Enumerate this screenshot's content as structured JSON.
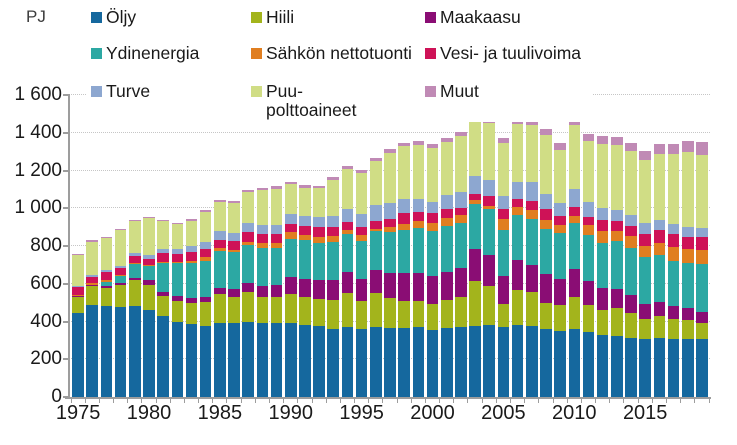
{
  "unit_label": "PJ",
  "legend": {
    "items": [
      {
        "label": "Öljy",
        "color": "#15689e"
      },
      {
        "label": "Hiili",
        "color": "#a3b41c"
      },
      {
        "label": "Maakaasu",
        "color": "#8a0d74"
      },
      {
        "label": "Ydinenergia",
        "color": "#2ca8a3"
      },
      {
        "label": "Sähkön nettotuonti",
        "color": "#e07e20"
      },
      {
        "label": "Vesi- ja tuulivoima",
        "color": "#ce1257"
      },
      {
        "label": "Turve",
        "color": "#8da7d0"
      },
      {
        "label": "Puu-\npolttoaineet",
        "color": "#d0dd85"
      },
      {
        "label": "Muut",
        "color": "#c08ab5"
      }
    ]
  },
  "chart_data": {
    "type": "bar",
    "subtype": "stacked-column",
    "title": "",
    "ylabel": "PJ",
    "xlabel": "",
    "ylim": [
      0,
      1600
    ],
    "y_tick_step": 200,
    "y_tick_labels": [
      "0",
      "200",
      "400",
      "600",
      "800",
      "1 000",
      "1 200",
      "1 400",
      "1 600"
    ],
    "grid": "horizontal-dotted",
    "legend_position": "top",
    "years": [
      1975,
      1976,
      1977,
      1978,
      1979,
      1980,
      1981,
      1982,
      1983,
      1984,
      1985,
      1986,
      1987,
      1988,
      1989,
      1990,
      1991,
      1992,
      1993,
      1994,
      1995,
      1996,
      1997,
      1998,
      1999,
      2000,
      2001,
      2002,
      2003,
      2004,
      2005,
      2006,
      2007,
      2008,
      2009,
      2010,
      2011,
      2012,
      2013,
      2014,
      2015,
      2016,
      2017,
      2018,
      2019
    ],
    "x_tick_labels": [
      {
        "label": "1975",
        "index": 0
      },
      {
        "label": "1980",
        "index": 5
      },
      {
        "label": "1985",
        "index": 10
      },
      {
        "label": "1990",
        "index": 15
      },
      {
        "label": "1995",
        "index": 20
      },
      {
        "label": "2000",
        "index": 25
      },
      {
        "label": "2005",
        "index": 30
      },
      {
        "label": "2010",
        "index": 35
      },
      {
        "label": "2015",
        "index": 40
      }
    ],
    "series": [
      {
        "name": "Öljy",
        "color": "#15689e",
        "values": [
          447,
          490,
          480,
          475,
          480,
          460,
          430,
          400,
          385,
          378,
          390,
          392,
          398,
          392,
          390,
          392,
          380,
          378,
          358,
          370,
          358,
          370,
          365,
          365,
          370,
          355,
          365,
          370,
          375,
          380,
          370,
          380,
          375,
          360,
          350,
          360,
          345,
          330,
          325,
          315,
          310,
          315,
          310,
          310,
          305
        ]
      },
      {
        "name": "Hiili",
        "color": "#a3b41c",
        "values": [
          85,
          98,
          98,
          120,
          138,
          133,
          105,
          110,
          115,
          125,
          155,
          140,
          158,
          140,
          140,
          155,
          150,
          140,
          155,
          180,
          150,
          180,
          160,
          145,
          140,
          140,
          150,
          160,
          240,
          210,
          125,
          185,
          180,
          140,
          135,
          170,
          140,
          130,
          145,
          130,
          105,
          115,
          105,
          100,
          85
        ]
      },
      {
        "name": "Maakaasu",
        "color": "#8a0d74",
        "values": [
          3,
          6,
          8,
          10,
          12,
          26,
          24,
          24,
          24,
          25,
          33,
          39,
          48,
          55,
          62,
          90,
          95,
          100,
          105,
          115,
          118,
          125,
          130,
          145,
          145,
          145,
          150,
          155,
          170,
          165,
          145,
          160,
          145,
          150,
          140,
          150,
          130,
          115,
          105,
          95,
          80,
          75,
          65,
          60,
          63
        ]
      },
      {
        "name": "Ydinenergia",
        "color": "#2ca8a3",
        "values": [
          0,
          0,
          26,
          36,
          73,
          73,
          150,
          175,
          185,
          195,
          195,
          195,
          200,
          200,
          195,
          200,
          205,
          200,
          205,
          200,
          200,
          205,
          220,
          230,
          240,
          240,
          240,
          235,
          240,
          240,
          245,
          240,
          245,
          240,
          245,
          240,
          245,
          240,
          250,
          250,
          245,
          245,
          240,
          240,
          250
        ]
      },
      {
        "name": "Sähkön nettotuonti",
        "color": "#e07e20",
        "values": [
          5,
          10,
          8,
          7,
          5,
          5,
          4,
          4,
          14,
          17,
          17,
          15,
          20,
          28,
          31,
          39,
          27,
          30,
          28,
          22,
          30,
          13,
          27,
          34,
          40,
          43,
          43,
          43,
          17,
          18,
          61,
          41,
          45,
          46,
          44,
          38,
          50,
          63,
          57,
          65,
          59,
          68,
          73,
          72,
          75
        ]
      },
      {
        "name": "Vesi- ja tuulivoima",
        "color": "#ce1257",
        "values": [
          44,
          34,
          44,
          36,
          39,
          37,
          48,
          47,
          48,
          47,
          44,
          44,
          49,
          47,
          46,
          39,
          47,
          53,
          48,
          42,
          46,
          42,
          43,
          54,
          45,
          52,
          47,
          38,
          34,
          54,
          49,
          41,
          51,
          61,
          46,
          47,
          46,
          62,
          51,
          52,
          66,
          67,
          72,
          66,
          68
        ]
      },
      {
        "name": "Turve",
        "color": "#8da7d0",
        "values": [
          4,
          6,
          8,
          12,
          14,
          17,
          22,
          26,
          30,
          36,
          45,
          44,
          48,
          48,
          50,
          55,
          56,
          53,
          58,
          65,
          70,
          80,
          85,
          75,
          70,
          60,
          75,
          85,
          95,
          85,
          70,
          95,
          100,
          80,
          70,
          95,
          80,
          60,
          60,
          55,
          55,
          55,
          50,
          55,
          50
        ]
      },
      {
        "name": "Puupolttoaineet",
        "color": "#d0dd85",
        "values": [
          167,
          180,
          172,
          190,
          172,
          197,
          150,
          130,
          133,
          160,
          155,
          160,
          168,
          185,
          190,
          158,
          150,
          152,
          195,
          215,
          215,
          235,
          265,
          280,
          285,
          285,
          280,
          295,
          290,
          300,
          280,
          305,
          300,
          310,
          280,
          340,
          320,
          340,
          340,
          340,
          335,
          350,
          375,
          395,
          385
        ]
      },
      {
        "name": "Muut",
        "color": "#c08ab5",
        "values": [
          5,
          6,
          6,
          6,
          7,
          7,
          7,
          8,
          8,
          9,
          9,
          10,
          10,
          11,
          12,
          12,
          13,
          13,
          14,
          15,
          16,
          17,
          18,
          19,
          20,
          21,
          22,
          24,
          26,
          28,
          30,
          32,
          34,
          35,
          36,
          38,
          40,
          42,
          44,
          46,
          48,
          50,
          52,
          60,
          72
        ]
      }
    ]
  }
}
